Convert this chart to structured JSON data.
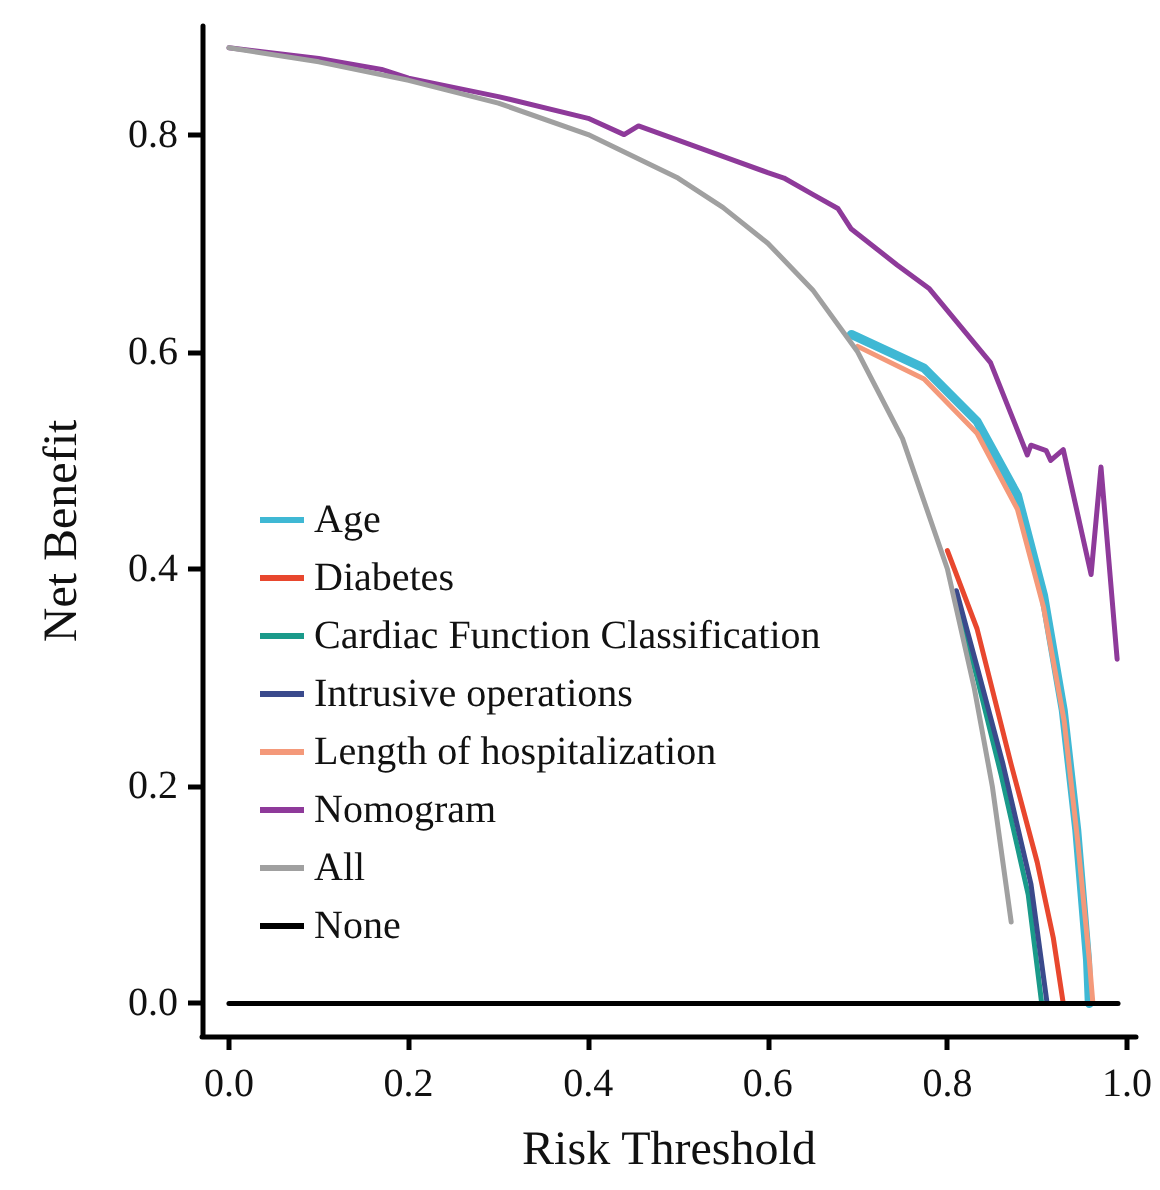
{
  "chart_data": {
    "type": "line",
    "xlabel": "Risk Threshold",
    "ylabel": "Net Benefit",
    "xlim": [
      -0.03,
      1.01
    ],
    "ylim": [
      -0.03,
      0.9
    ],
    "xticks": [
      {
        "value": 0,
        "label": "0.0"
      },
      0.2,
      0.4,
      0.6,
      0.8,
      {
        "value": 1,
        "label": "1.0"
      }
    ],
    "yticks": [
      {
        "value": 0,
        "label": "0.0"
      },
      0.2,
      0.4,
      0.6,
      0.8
    ],
    "grid": false,
    "legend": "left",
    "marker": "none",
    "line_style": "solid",
    "series": [
      {
        "name": "Age",
        "color": "#3fb8d4",
        "x": [
          0.693,
          0.774,
          0.833,
          0.878,
          0.907,
          0.929,
          0.944,
          0.956,
          0.958
        ],
        "values": [
          0.616,
          0.585,
          0.536,
          0.468,
          0.376,
          0.27,
          0.16,
          0.04,
          0.0
        ]
      },
      {
        "name": "Diabetes",
        "color": "#e8472e",
        "x": [
          0.8,
          0.833,
          0.871,
          0.9,
          0.918,
          0.929
        ],
        "values": [
          0.417,
          0.345,
          0.22,
          0.13,
          0.06,
          0.0
        ]
      },
      {
        "name": "Cardiac Function Classification",
        "color": "#1a9a8a",
        "x": [
          0.81,
          0.833,
          0.86,
          0.89,
          0.905
        ],
        "values": [
          0.37,
          0.3,
          0.21,
          0.1,
          0.0
        ]
      },
      {
        "name": "Intrusive operations",
        "color": "#3a4a8c",
        "x": [
          0.81,
          0.833,
          0.862,
          0.893,
          0.911
        ],
        "values": [
          0.38,
          0.31,
          0.22,
          0.11,
          0.0
        ]
      },
      {
        "name": "Length of hospitalization",
        "color": "#f4997a",
        "x": [
          0.7,
          0.774,
          0.833,
          0.878,
          0.907,
          0.93,
          0.945,
          0.958,
          0.962
        ],
        "values": [
          0.605,
          0.575,
          0.525,
          0.455,
          0.365,
          0.26,
          0.15,
          0.04,
          0.0
        ]
      },
      {
        "name": "Nomogram",
        "color": "#8e3a9a",
        "x": [
          0,
          0.1,
          0.17,
          0.2,
          0.3,
          0.4,
          0.44,
          0.456,
          0.5,
          0.55,
          0.6,
          0.618,
          0.65,
          0.678,
          0.693,
          0.744,
          0.78,
          0.848,
          0.889,
          0.893,
          0.91,
          0.915,
          0.929,
          0.96,
          0.971,
          0.989
        ],
        "values": [
          0.88,
          0.87,
          0.86,
          0.852,
          0.835,
          0.815,
          0.8,
          0.808,
          0.795,
          0.78,
          0.765,
          0.76,
          0.745,
          0.732,
          0.713,
          0.68,
          0.658,
          0.59,
          0.505,
          0.514,
          0.509,
          0.5,
          0.51,
          0.395,
          0.494,
          0.317
        ]
      },
      {
        "name": "All",
        "color": "#a0a0a0",
        "x": [
          0,
          0.1,
          0.2,
          0.3,
          0.4,
          0.5,
          0.55,
          0.6,
          0.65,
          0.7,
          0.75,
          0.8,
          0.83,
          0.85,
          0.871
        ],
        "values": [
          0.88,
          0.867,
          0.85,
          0.829,
          0.8,
          0.76,
          0.733,
          0.7,
          0.657,
          0.6,
          0.52,
          0.4,
          0.29,
          0.2,
          0.075
        ]
      },
      {
        "name": "None",
        "color": "#000000",
        "x": [
          0,
          0.99
        ],
        "values": [
          0,
          0
        ]
      }
    ]
  }
}
